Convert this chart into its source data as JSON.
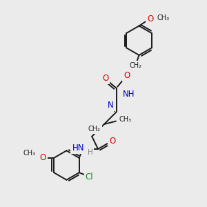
{
  "bg_color": "#ebebeb",
  "bond_color": "#1a1a1a",
  "bond_width": 1.4,
  "atom_colors": {
    "O": "#dd0000",
    "N": "#0000cc",
    "Cl": "#228822",
    "C": "#1a1a1a",
    "H": "#888888"
  },
  "font_size": 8.5,
  "figsize": [
    3.0,
    3.0
  ],
  "dpi": 100,
  "xlim": [
    0,
    10
  ],
  "ylim": [
    0,
    10
  ]
}
